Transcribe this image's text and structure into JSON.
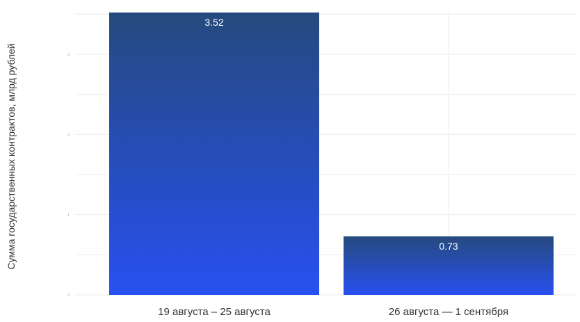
{
  "chart_data": {
    "type": "bar",
    "title": "",
    "xlabel": "",
    "ylabel": "Сумма государственных контрактов, млрд рублей",
    "categories": [
      "19 августа – 25 августа",
      "26 августа — 1 сентября"
    ],
    "values": [
      3.52,
      0.73
    ],
    "data_labels": [
      "3.52",
      "0.73"
    ],
    "ylim": [
      0,
      3.52
    ],
    "yticks": [
      0,
      1,
      2,
      3
    ],
    "grid": true,
    "legend": "none",
    "colors": {
      "bar_top": "#264a7e",
      "bar_bottom": "#2750f0",
      "grid": "#ececec",
      "tick_text": "#999999",
      "label_text": "#333333",
      "value_text": "#ffffff"
    }
  }
}
